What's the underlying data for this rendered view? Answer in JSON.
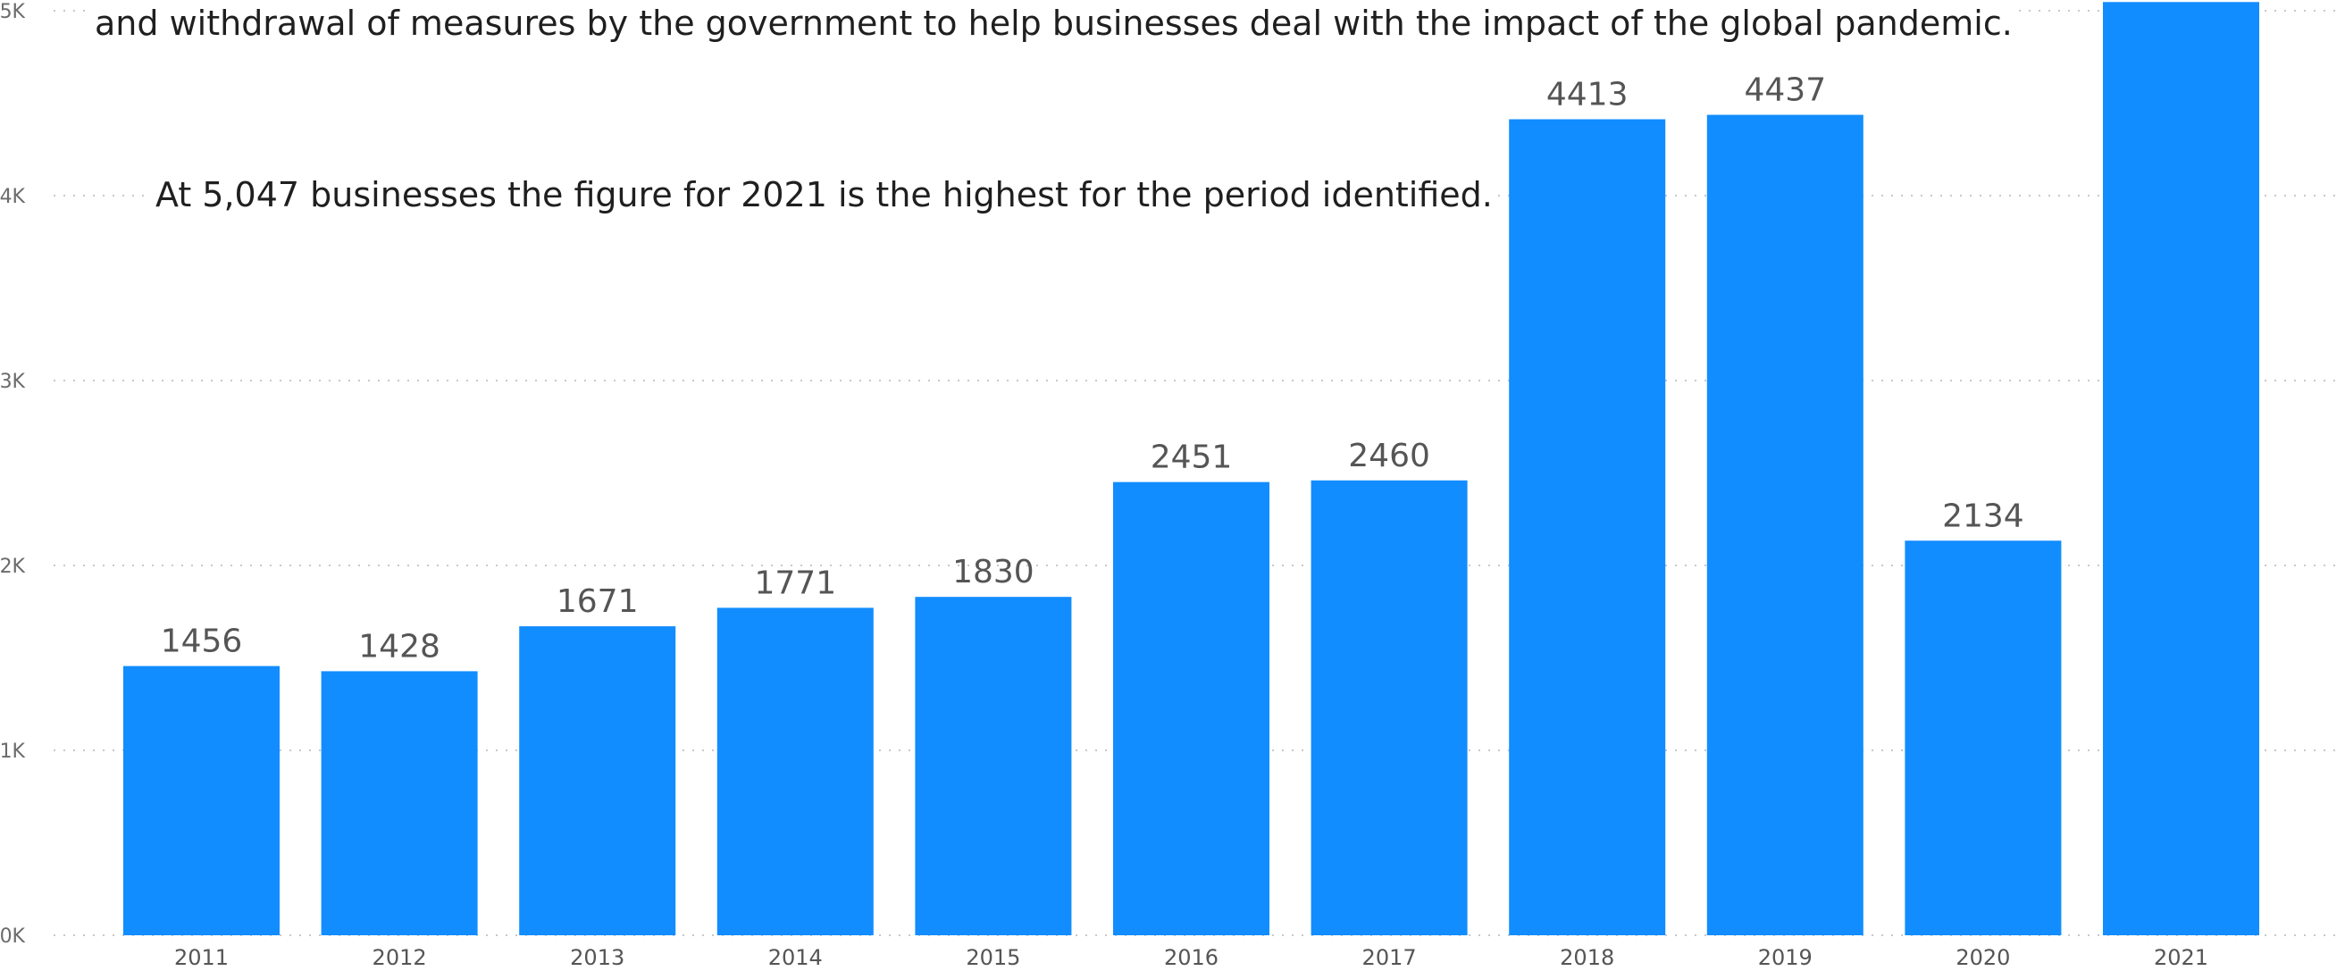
{
  "chart_data": {
    "type": "bar",
    "categories": [
      "2011",
      "2012",
      "2013",
      "2014",
      "2015",
      "2016",
      "2017",
      "2018",
      "2019",
      "2020",
      "2021"
    ],
    "values": [
      1456,
      1428,
      1671,
      1771,
      1830,
      2451,
      2460,
      4413,
      4437,
      2134,
      5047
    ],
    "value_labels": [
      "1456",
      "1428",
      "1671",
      "1771",
      "1830",
      "2451",
      "2460",
      "4413",
      "4437",
      "2134",
      ""
    ],
    "y_ticks": [
      {
        "value": 0,
        "label": "0K"
      },
      {
        "value": 1000,
        "label": "1K"
      },
      {
        "value": 2000,
        "label": "2K"
      },
      {
        "value": 3000,
        "label": "3K"
      },
      {
        "value": 4000,
        "label": "4K"
      },
      {
        "value": 5000,
        "label": "5K"
      }
    ],
    "ylim": [
      0,
      5000
    ],
    "grid": true,
    "bar_color": "#118DFF"
  },
  "annotations": {
    "top": "and withdrawal of measures by the government to help businesses deal with the impact of the global pandemic.",
    "mid": "At 5,047 businesses the figure for 2021 is the highest for the period identified."
  }
}
